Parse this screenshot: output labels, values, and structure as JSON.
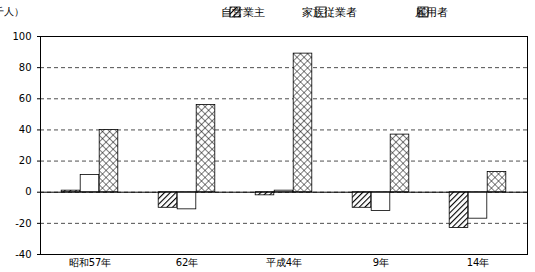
{
  "chart_data": {
    "type": "bar",
    "ylabel": "（千人）",
    "categories": [
      "昭和57年",
      "62年",
      "平成4年",
      "9年",
      "14年"
    ],
    "series": [
      {
        "name": "自営業主",
        "color": "#ffffff",
        "values": [
          1,
          -10,
          -2,
          -10,
          -23
        ]
      },
      {
        "name": "家族従業者",
        "color": "#ffffff",
        "values": [
          11,
          -11,
          1,
          -12,
          -17
        ]
      },
      {
        "name": "雇用者",
        "color": "#ffffff",
        "values": [
          40,
          56,
          89,
          37,
          13
        ]
      }
    ],
    "ylim": [
      -40,
      100
    ],
    "yticks": [
      -40,
      -20,
      0,
      20,
      40,
      60,
      80,
      100
    ],
    "grid": true,
    "legend": "top-right"
  }
}
